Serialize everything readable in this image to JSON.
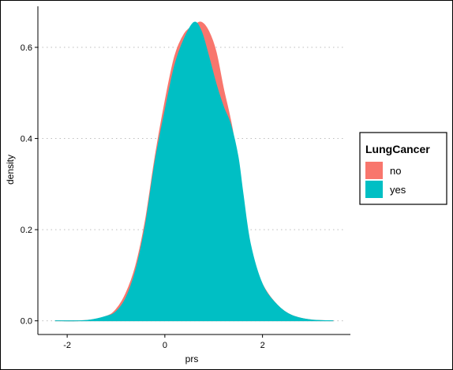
{
  "chart_data": {
    "type": "area",
    "xlabel": "prs",
    "ylabel": "density",
    "xlim": [
      -2.6,
      3.8
    ],
    "ylim": [
      -0.03,
      0.69
    ],
    "x_ticks": [
      -2,
      0,
      2
    ],
    "x_tick_labels": [
      "-2",
      "0",
      "2"
    ],
    "y_ticks": [
      0.0,
      0.2,
      0.4,
      0.6
    ],
    "y_tick_labels": [
      "0.0",
      "0.2",
      "0.4",
      "0.6"
    ],
    "grid": "horizontal dotted at y ticks",
    "legend": {
      "title": "LungCancer",
      "placement": "right",
      "entries": [
        "no",
        "yes"
      ]
    },
    "series": [
      {
        "name": "no",
        "color": "#F8766D",
        "points": [
          [
            -2.25,
            0.0
          ],
          [
            -1.6,
            0.001
          ],
          [
            -1.2,
            0.01
          ],
          [
            -1.0,
            0.025
          ],
          [
            -0.8,
            0.06
          ],
          [
            -0.6,
            0.12
          ],
          [
            -0.4,
            0.22
          ],
          [
            -0.2,
            0.36
          ],
          [
            0.0,
            0.48
          ],
          [
            0.2,
            0.58
          ],
          [
            0.4,
            0.63
          ],
          [
            0.6,
            0.648
          ],
          [
            0.75,
            0.655
          ],
          [
            0.9,
            0.635
          ],
          [
            1.05,
            0.59
          ],
          [
            1.2,
            0.51
          ],
          [
            1.4,
            0.41
          ],
          [
            1.6,
            0.25
          ],
          [
            1.8,
            0.14
          ],
          [
            2.0,
            0.08
          ],
          [
            2.3,
            0.035
          ],
          [
            2.6,
            0.012
          ],
          [
            3.0,
            0.002
          ],
          [
            3.45,
            0.0
          ]
        ]
      },
      {
        "name": "yes",
        "color": "#00BFC4",
        "points": [
          [
            -2.25,
            0.0
          ],
          [
            -1.6,
            0.001
          ],
          [
            -1.2,
            0.01
          ],
          [
            -1.0,
            0.02
          ],
          [
            -0.8,
            0.05
          ],
          [
            -0.6,
            0.11
          ],
          [
            -0.4,
            0.21
          ],
          [
            -0.2,
            0.35
          ],
          [
            0.0,
            0.46
          ],
          [
            0.2,
            0.56
          ],
          [
            0.4,
            0.62
          ],
          [
            0.6,
            0.655
          ],
          [
            0.75,
            0.635
          ],
          [
            0.9,
            0.58
          ],
          [
            1.05,
            0.52
          ],
          [
            1.2,
            0.47
          ],
          [
            1.35,
            0.43
          ],
          [
            1.5,
            0.36
          ],
          [
            1.6,
            0.28
          ],
          [
            1.75,
            0.17
          ],
          [
            2.0,
            0.08
          ],
          [
            2.3,
            0.035
          ],
          [
            2.6,
            0.012
          ],
          [
            3.0,
            0.002
          ],
          [
            3.45,
            0.0
          ]
        ]
      }
    ]
  }
}
